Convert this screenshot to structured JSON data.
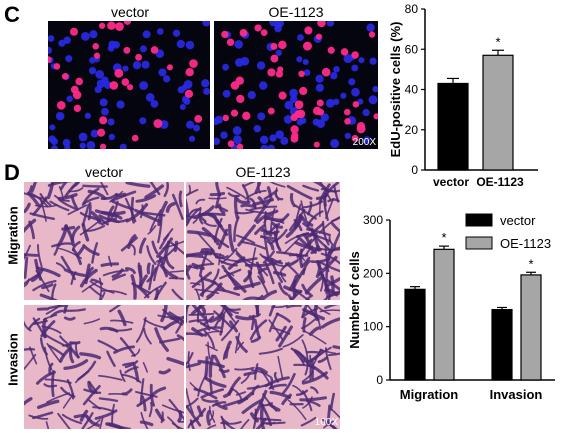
{
  "panel_c": {
    "letter": "C",
    "col_labels": [
      "vector",
      "OE-1123"
    ],
    "magnification": "200X",
    "image_description_names": [
      "edu-fluorescence-vector",
      "edu-fluorescence-oe1123"
    ]
  },
  "panel_d": {
    "letter": "D",
    "col_labels": [
      "vector",
      "OE-1123"
    ],
    "row_labels": [
      "Migration",
      "Invasion"
    ],
    "magnification": "100X"
  },
  "colors": {
    "vector_bar": "#000000",
    "oe_bar": "#a6a6a6",
    "fluor_bg": "#05050f",
    "fluor_blue": "#2a2ae8",
    "fluor_pink": "#ff2a8a",
    "transwell_bg": "#e8b7c8",
    "transwell_cell": "#4b2a73"
  },
  "chart_data": [
    {
      "type": "bar",
      "categories": [
        "vector",
        "OE-1123"
      ],
      "values": [
        43,
        57
      ],
      "errors": [
        2.5,
        2.5
      ],
      "significance": [
        "",
        "*"
      ],
      "title": "",
      "xlabel": "",
      "ylabel": "EdU-positive cells (%)",
      "ylim": [
        0,
        80
      ],
      "yticks": [
        0,
        20,
        40,
        60,
        80
      ],
      "grid": false,
      "legend": "none"
    },
    {
      "type": "bar",
      "categories": [
        "Migration",
        "Invasion"
      ],
      "series": [
        {
          "name": "vector",
          "values": [
            170,
            132
          ],
          "errors": [
            5,
            4
          ],
          "significance": [
            "",
            ""
          ]
        },
        {
          "name": "OE-1123",
          "values": [
            245,
            197
          ],
          "errors": [
            6,
            5
          ],
          "significance": [
            "*",
            "*"
          ]
        }
      ],
      "title": "",
      "xlabel": "",
      "ylabel": "Number of cells",
      "ylim": [
        0,
        300
      ],
      "yticks": [
        0,
        100,
        200,
        300
      ],
      "grid": false,
      "legend": "top-right"
    }
  ]
}
